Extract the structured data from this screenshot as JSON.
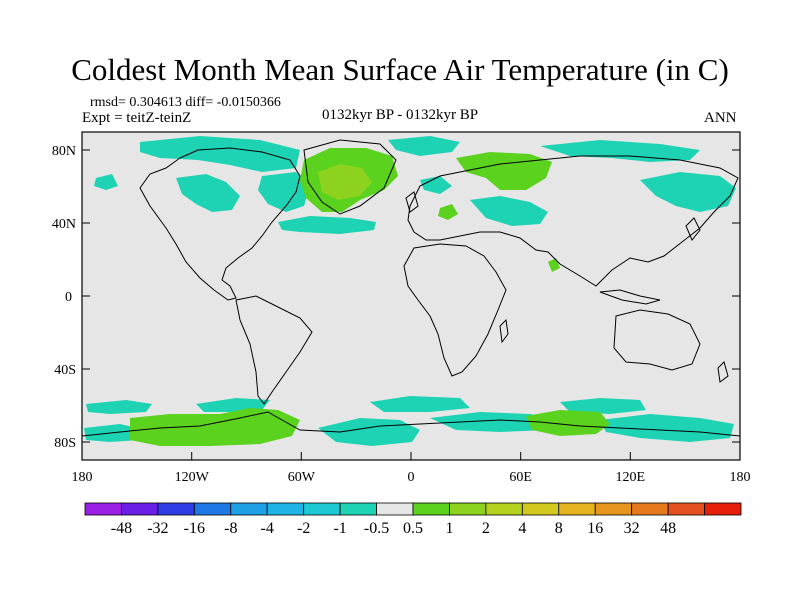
{
  "title": "Coldest Month Mean Surface Air Temperature (in C)",
  "stats_line": "rmsd= 0.304613 diff= -0.0150366",
  "experiment_line": "Expt = teitZ-teinZ",
  "period_line": "0132kyr BP - 0132kyr BP",
  "season": "ANN",
  "lat_labels": [
    "80N",
    "40N",
    "0",
    "40S",
    "80S"
  ],
  "lon_labels": [
    "180",
    "120W",
    "60W",
    "0",
    "60E",
    "120E",
    "180"
  ],
  "colorbar": {
    "colors": [
      "#9a1ee6",
      "#6a1ee6",
      "#2e3ce6",
      "#1e78e6",
      "#1ea0e6",
      "#1eb4e6",
      "#1ec8d2",
      "#1ed2b4",
      "#e6e6e6",
      "#5ad21e",
      "#8cd21e",
      "#b4d21e",
      "#d2c81e",
      "#e6b41e",
      "#e6961e",
      "#e6781e",
      "#e6501e",
      "#e61e0a"
    ],
    "labels": [
      "-48",
      "-32",
      "-16",
      "-8",
      "-4",
      "-2",
      "-1",
      "-0.5",
      "0.5",
      "1",
      "2",
      "4",
      "8",
      "16",
      "32",
      "48"
    ]
  },
  "colors": {
    "background": "#e6e6e6",
    "slight_cool": "#1ed2b4",
    "slight_warm": "#5ad21e",
    "warm": "#8cd21e",
    "coast": "#000000"
  }
}
